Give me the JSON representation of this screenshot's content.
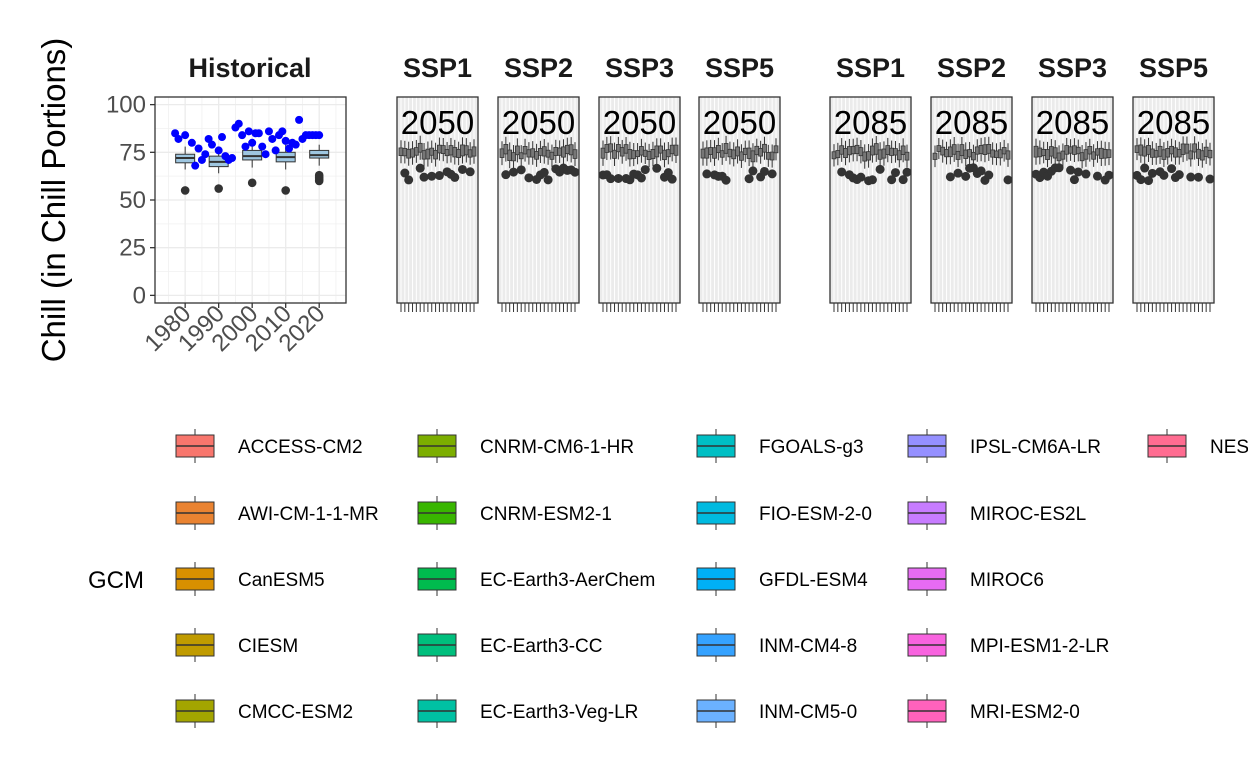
{
  "chart_data": {
    "type": "box",
    "ylabel": "Chill (in Chill Portions)",
    "ylim": [
      -4,
      104
    ],
    "yticks": [
      0,
      25,
      50,
      75,
      100
    ],
    "grid": true,
    "legend_position": "bottom",
    "historical": {
      "title": "Historical",
      "xticks": [
        "1980",
        "1990",
        "2000",
        "2010",
        "2020"
      ],
      "boxes": [
        {
          "year": 1980,
          "q1": 69.5,
          "median": 72,
          "q3": 74,
          "whisker_low": 66,
          "whisker_high": 78,
          "outliers": [
            55
          ]
        },
        {
          "year": 1990,
          "q1": 67.5,
          "median": 70,
          "q3": 73,
          "whisker_low": 64,
          "whisker_high": 77,
          "outliers": [
            56
          ]
        },
        {
          "year": 2000,
          "q1": 71,
          "median": 73,
          "q3": 76,
          "whisker_low": 67,
          "whisker_high": 80,
          "outliers": [
            59
          ]
        },
        {
          "year": 2010,
          "q1": 70,
          "median": 72.5,
          "q3": 75,
          "whisker_low": 66,
          "whisker_high": 79,
          "outliers": [
            55
          ]
        },
        {
          "year": 2020,
          "q1": 72,
          "median": 73.5,
          "q3": 76,
          "whisker_low": 68,
          "whisker_high": 79,
          "outliers": [
            60,
            61,
            62,
            63
          ]
        }
      ],
      "observed_points": [
        [
          1977,
          85
        ],
        [
          1978,
          82
        ],
        [
          1980,
          84
        ],
        [
          1982,
          80
        ],
        [
          1983,
          68
        ],
        [
          1984,
          77
        ],
        [
          1985,
          71
        ],
        [
          1986,
          74
        ],
        [
          1987,
          82
        ],
        [
          1988,
          79
        ],
        [
          1990,
          76
        ],
        [
          1991,
          83
        ],
        [
          1992,
          73
        ],
        [
          1993,
          71
        ],
        [
          1994,
          72
        ],
        [
          1995,
          88
        ],
        [
          1996,
          90
        ],
        [
          1997,
          84
        ],
        [
          1998,
          78
        ],
        [
          1999,
          86
        ],
        [
          2000,
          80
        ],
        [
          2001,
          85
        ],
        [
          2002,
          85
        ],
        [
          2003,
          78
        ],
        [
          2004,
          74
        ],
        [
          2005,
          86
        ],
        [
          2006,
          82
        ],
        [
          2007,
          76
        ],
        [
          2008,
          84
        ],
        [
          2009,
          86
        ],
        [
          2010,
          81
        ],
        [
          2011,
          77
        ],
        [
          2012,
          80
        ],
        [
          2013,
          79
        ],
        [
          2014,
          92
        ],
        [
          2015,
          82
        ],
        [
          2016,
          84
        ],
        [
          2017,
          84
        ],
        [
          2018,
          84
        ],
        [
          2019,
          84
        ],
        [
          2020,
          84
        ]
      ]
    },
    "scenarios": [
      {
        "title": "SSP1",
        "year_label": "2050"
      },
      {
        "title": "SSP2",
        "year_label": "2050"
      },
      {
        "title": "SSP3",
        "year_label": "2050"
      },
      {
        "title": "SSP5",
        "year_label": "2050"
      },
      {
        "title": "SSP1",
        "year_label": "2085"
      },
      {
        "title": "SSP2",
        "year_label": "2085"
      },
      {
        "title": "SSP3",
        "year_label": "2085"
      },
      {
        "title": "SSP5",
        "year_label": "2085"
      }
    ],
    "scenario_boxes": {
      "median_range": [
        73,
        77
      ],
      "outlier_range": [
        60,
        67
      ],
      "boxes_per_panel": 20
    },
    "legend": {
      "title": "GCM",
      "entries": [
        {
          "label": "ACCESS-CM2",
          "color": "#F8766D"
        },
        {
          "label": "AWI-CM-1-1-MR",
          "color": "#EA8331"
        },
        {
          "label": "CanESM5",
          "color": "#D89000"
        },
        {
          "label": "CIESM",
          "color": "#C09B00"
        },
        {
          "label": "CMCC-ESM2",
          "color": "#A3A500"
        },
        {
          "label": "CNRM-CM6-1-HR",
          "color": "#7CAE00"
        },
        {
          "label": "CNRM-ESM2-1",
          "color": "#39B600"
        },
        {
          "label": "EC-Earth3-AerChem",
          "color": "#00BB4E"
        },
        {
          "label": "EC-Earth3-CC",
          "color": "#00BF7D"
        },
        {
          "label": "EC-Earth3-Veg-LR",
          "color": "#00C1A3"
        },
        {
          "label": "FGOALS-g3",
          "color": "#00BFC4"
        },
        {
          "label": "FIO-ESM-2-0",
          "color": "#00BAE0"
        },
        {
          "label": "GFDL-ESM4",
          "color": "#00B0F6"
        },
        {
          "label": "INM-CM4-8",
          "color": "#35A2FF"
        },
        {
          "label": "INM-CM5-0",
          "color": "#6BB1FF"
        },
        {
          "label": "IPSL-CM6A-LR",
          "color": "#9590FF"
        },
        {
          "label": "MIROC-ES2L",
          "color": "#C77CFF"
        },
        {
          "label": "MIROC6",
          "color": "#E76BF3"
        },
        {
          "label": "MPI-ESM1-2-LR",
          "color": "#F863DF"
        },
        {
          "label": "MRI-ESM2-0",
          "color": "#FF62BC"
        },
        {
          "label": "NES",
          "color": "#FF6C91"
        }
      ]
    }
  }
}
